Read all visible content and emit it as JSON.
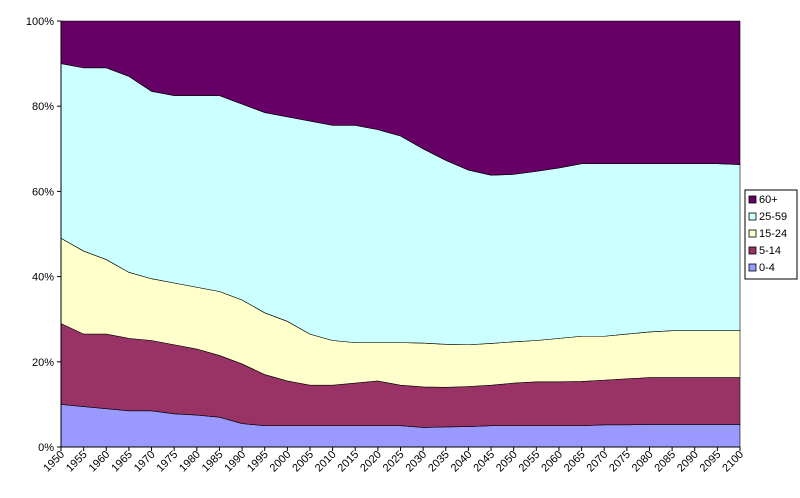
{
  "chart_data": {
    "type": "area",
    "stacked": true,
    "normalized_percent": true,
    "x": [
      1950,
      1955,
      1960,
      1965,
      1970,
      1975,
      1980,
      1985,
      1990,
      1995,
      2000,
      2005,
      2010,
      2015,
      2020,
      2025,
      2030,
      2035,
      2040,
      2045,
      2050,
      2055,
      2060,
      2065,
      2070,
      2075,
      2080,
      2085,
      2090,
      2095,
      2100
    ],
    "series": [
      {
        "name": "0-4",
        "color": "#9999FF",
        "values": [
          10,
          9.5,
          9,
          8.5,
          8.5,
          7.8,
          7.5,
          7,
          5.5,
          5,
          5,
          5,
          5,
          5,
          5,
          5,
          4.6,
          4.7,
          4.8,
          5,
          5,
          5,
          5,
          5,
          5.2,
          5.2,
          5.3,
          5.3,
          5.3,
          5.3,
          5.3
        ]
      },
      {
        "name": "5-14",
        "color": "#993366",
        "values": [
          19,
          17,
          17.5,
          17,
          16.5,
          16.2,
          15.5,
          14.5,
          14,
          12,
          10.5,
          9.5,
          9.5,
          10,
          10.5,
          9.5,
          9.5,
          9.3,
          9.4,
          9.5,
          10,
          10.3,
          10.3,
          10.4,
          10.5,
          10.8,
          11,
          11,
          11,
          11,
          11
        ]
      },
      {
        "name": "15-24",
        "color": "#FFFFCC",
        "values": [
          20,
          19.5,
          17.5,
          15.5,
          14.5,
          14.5,
          14.5,
          15,
          15,
          14.5,
          14,
          12,
          10.5,
          9.5,
          9,
          10,
          10.3,
          10.1,
          9.8,
          9.8,
          9.7,
          9.7,
          10.2,
          10.6,
          10.3,
          10.5,
          10.7,
          11,
          11,
          11,
          11
        ]
      },
      {
        "name": "25-59",
        "color": "#CCFFFF",
        "values": [
          41,
          43,
          45,
          46,
          44,
          44,
          45,
          46,
          46,
          47,
          48,
          50,
          50.5,
          51,
          50,
          48.5,
          45.6,
          43.2,
          41,
          39.5,
          39.3,
          39.7,
          40,
          40.5,
          40.5,
          40,
          39.5,
          39.2,
          39.2,
          39.2,
          39
        ]
      },
      {
        "name": "60+",
        "color": "#660066",
        "values": [
          10,
          11,
          11,
          13,
          16.5,
          17.5,
          17.5,
          17.5,
          19.5,
          21.5,
          22.5,
          23.5,
          24.5,
          24.5,
          25.5,
          27,
          30,
          32.7,
          35,
          36.2,
          36,
          35.3,
          34.5,
          33.5,
          33.5,
          33.5,
          33.5,
          33.5,
          33.5,
          33.5,
          33.7
        ]
      }
    ],
    "ylim": [
      0,
      100
    ],
    "y_ticks": [
      "0%",
      "20%",
      "40%",
      "60%",
      "80%",
      "100%"
    ],
    "x_tick_labels": [
      "1950",
      "1955",
      "1960",
      "1965",
      "1970",
      "1975",
      "1980",
      "1985",
      "1990",
      "1995",
      "2000",
      "2005",
      "2010",
      "2015",
      "2020",
      "2025",
      "2030",
      "2035",
      "2040",
      "2045",
      "2050",
      "2055",
      "2060",
      "2065",
      "2070",
      "2075",
      "2080",
      "2085",
      "2090",
      "2095",
      "2100"
    ],
    "legend": {
      "position": "right",
      "order": [
        "60+",
        "25-59",
        "15-24",
        "5-14",
        "0-4"
      ]
    },
    "grid": false
  }
}
